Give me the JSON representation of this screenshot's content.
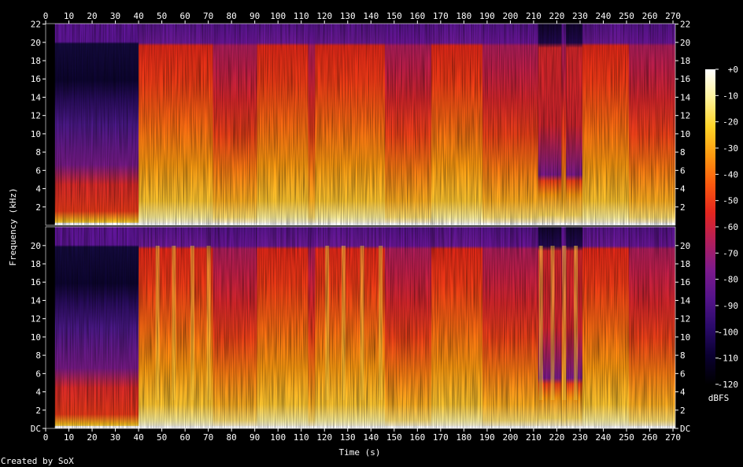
{
  "chart_data": {
    "type": "heatmap",
    "title": "",
    "channels": 2,
    "xlabel": "Time (s)",
    "ylabel": "Frequency (kHz)",
    "x_ticks": [
      0,
      10,
      20,
      30,
      40,
      50,
      60,
      70,
      80,
      90,
      100,
      110,
      120,
      130,
      140,
      150,
      160,
      170,
      180,
      190,
      200,
      210,
      220,
      230,
      240,
      250,
      260,
      270
    ],
    "xlim": [
      0,
      271
    ],
    "y_ticks_top": [
      "2",
      "4",
      "6",
      "8",
      "10",
      "12",
      "14",
      "16",
      "18",
      "20",
      "22"
    ],
    "y_ticks_bottom": [
      "DC",
      "2",
      "4",
      "6",
      "8",
      "10",
      "12",
      "14",
      "16",
      "18",
      "20"
    ],
    "ylim_khz": [
      0,
      22.05
    ],
    "colorbar": {
      "label": "dBFS",
      "ticks": [
        "+0",
        "-10",
        "-20",
        "-30",
        "-40",
        "-50",
        "-60",
        "-70",
        "-80",
        "-90",
        "-100",
        "-110",
        "-120"
      ],
      "range": [
        -120,
        0
      ]
    },
    "segments": [
      {
        "t0": 0,
        "t1": 4,
        "kind": "silence"
      },
      {
        "t0": 4,
        "t1": 40,
        "kind": "quiet-intro"
      },
      {
        "t0": 40,
        "t1": 72,
        "kind": "loud"
      },
      {
        "t0": 72,
        "t1": 91,
        "kind": "mid"
      },
      {
        "t0": 91,
        "t1": 113,
        "kind": "loud"
      },
      {
        "t0": 113,
        "t1": 116,
        "kind": "mid"
      },
      {
        "t0": 116,
        "t1": 146,
        "kind": "loud"
      },
      {
        "t0": 146,
        "t1": 166,
        "kind": "mid"
      },
      {
        "t0": 166,
        "t1": 188,
        "kind": "loud"
      },
      {
        "t0": 188,
        "t1": 212,
        "kind": "mid"
      },
      {
        "t0": 212,
        "t1": 222,
        "kind": "lowpassed"
      },
      {
        "t0": 222,
        "t1": 224,
        "kind": "mid"
      },
      {
        "t0": 224,
        "t1": 231,
        "kind": "lowpassed"
      },
      {
        "t0": 231,
        "t1": 251,
        "kind": "loud"
      },
      {
        "t0": 251,
        "t1": 271,
        "kind": "mid"
      }
    ],
    "bottom_channel_transients_s": [
      48,
      55,
      63,
      70,
      121,
      128,
      136,
      144,
      213,
      218,
      223,
      228
    ]
  },
  "footer": {
    "credit": "Created by SoX"
  },
  "colors": {
    "background": "#000000",
    "palette": [
      "#000000",
      "#0a0030",
      "#2a0a6a",
      "#54138a",
      "#7d1a8c",
      "#b21e5a",
      "#e4261e",
      "#fb5a0e",
      "#fd9a10",
      "#ffd428",
      "#fff39a",
      "#ffffff"
    ]
  }
}
